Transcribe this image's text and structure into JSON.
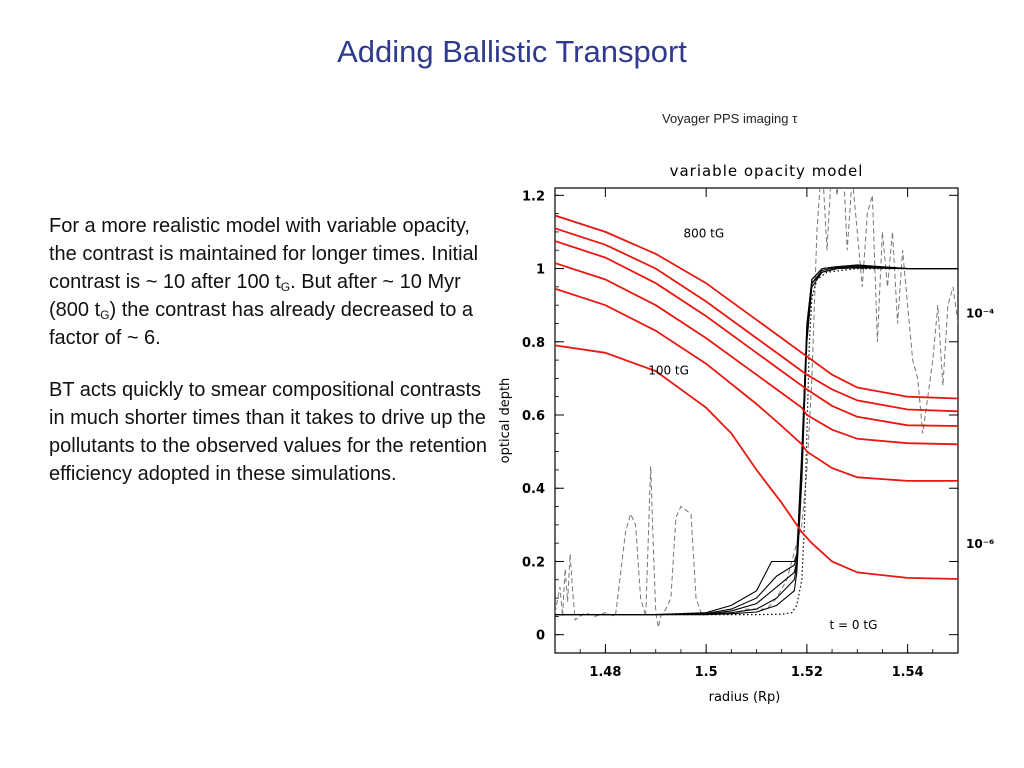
{
  "slide": {
    "title": "Adding Ballistic Transport",
    "caption": "Voyager PPS imaging τ",
    "paragraph1": {
      "p1": "For a more realistic model with variable opacity, the contrast is maintained for longer times. Initial contrast is ~ 10 after 100 t",
      "p1_sub": "G",
      "p2": ". But after ~ 10 Myr (800 t",
      "p2_sub": "G",
      "p3": ") the contrast has already decreased to  a factor of ~ 6."
    },
    "paragraph2": "BT acts quickly to smear compositional contrasts in much shorter times than it takes to drive up the pollutants to the observed values for the retention efficiency adopted in these simulations."
  },
  "chart_data": {
    "type": "line",
    "title": "variable opacity model",
    "xlabel": "radius (Rp)",
    "ylabel": "optical depth",
    "xlim": [
      1.47,
      1.55
    ],
    "ylim": [
      -0.05,
      1.22
    ],
    "x_ticks": [
      1.48,
      1.5,
      1.52,
      1.54
    ],
    "x_tick_labels": [
      "1.48",
      "1.5",
      "1.52",
      "1.54"
    ],
    "y_ticks": [
      0,
      0.2,
      0.4,
      0.6,
      0.8,
      1,
      1.2
    ],
    "y_tick_labels": [
      "0",
      "0.2",
      "0.4",
      "0.6",
      "0.8",
      "1",
      "1.2"
    ],
    "right_tick_labels": [
      {
        "label": "10⁻⁴",
        "y": 0.88
      },
      {
        "label": "10⁻⁶",
        "y": 0.25
      }
    ],
    "annotations": [
      {
        "text": "800 tG",
        "x": 1.4955,
        "y": 1.085
      },
      {
        "text": "100 tG",
        "x": 1.4885,
        "y": 0.71
      },
      {
        "text": "t = 0 tG",
        "x": 1.5245,
        "y": 0.015
      }
    ],
    "red_series": [
      {
        "x": [
          1.47,
          1.48,
          1.49,
          1.5,
          1.51,
          1.515,
          1.519,
          1.52,
          1.525,
          1.53,
          1.54,
          1.55
        ],
        "y": [
          1.145,
          1.1,
          1.04,
          0.96,
          0.86,
          0.81,
          0.77,
          0.76,
          0.71,
          0.675,
          0.65,
          0.645
        ]
      },
      {
        "x": [
          1.47,
          1.48,
          1.49,
          1.5,
          1.51,
          1.515,
          1.519,
          1.52,
          1.525,
          1.53,
          1.54,
          1.55
        ],
        "y": [
          1.11,
          1.065,
          1.0,
          0.91,
          0.81,
          0.76,
          0.72,
          0.71,
          0.67,
          0.64,
          0.615,
          0.61
        ]
      },
      {
        "x": [
          1.47,
          1.48,
          1.49,
          1.5,
          1.51,
          1.515,
          1.519,
          1.52,
          1.525,
          1.53,
          1.54,
          1.55
        ],
        "y": [
          1.075,
          1.03,
          0.96,
          0.87,
          0.77,
          0.72,
          0.68,
          0.67,
          0.625,
          0.595,
          0.572,
          0.57
        ]
      },
      {
        "x": [
          1.47,
          1.48,
          1.49,
          1.5,
          1.51,
          1.515,
          1.519,
          1.52,
          1.525,
          1.53,
          1.54,
          1.55
        ],
        "y": [
          1.015,
          0.97,
          0.9,
          0.81,
          0.71,
          0.66,
          0.62,
          0.6,
          0.56,
          0.535,
          0.523,
          0.52
        ]
      },
      {
        "x": [
          1.47,
          1.48,
          1.49,
          1.5,
          1.51,
          1.515,
          1.519,
          1.52,
          1.525,
          1.53,
          1.54,
          1.55
        ],
        "y": [
          0.945,
          0.9,
          0.83,
          0.74,
          0.63,
          0.57,
          0.52,
          0.5,
          0.455,
          0.43,
          0.42,
          0.42
        ]
      },
      {
        "x": [
          1.47,
          1.48,
          1.49,
          1.5,
          1.505,
          1.51,
          1.515,
          1.519,
          1.521,
          1.525,
          1.53,
          1.54,
          1.55
        ],
        "y": [
          0.79,
          0.77,
          0.72,
          0.62,
          0.55,
          0.45,
          0.36,
          0.28,
          0.25,
          0.2,
          0.17,
          0.155,
          0.152
        ]
      }
    ],
    "black_series": [
      {
        "x": [
          1.47,
          1.48,
          1.49,
          1.5,
          1.505,
          1.51,
          1.513,
          1.516,
          1.5175,
          1.518,
          1.519,
          1.52,
          1.521,
          1.523,
          1.526,
          1.53,
          1.54,
          1.55
        ],
        "y": [
          0.055,
          0.055,
          0.055,
          0.06,
          0.08,
          0.12,
          0.2,
          0.2,
          0.2,
          0.22,
          0.5,
          0.85,
          0.97,
          1.0,
          1.005,
          1.01,
          1.0,
          1.0
        ]
      },
      {
        "x": [
          1.47,
          1.48,
          1.49,
          1.5,
          1.505,
          1.51,
          1.514,
          1.5175,
          1.518,
          1.519,
          1.52,
          1.521,
          1.523,
          1.526,
          1.53,
          1.54,
          1.55
        ],
        "y": [
          0.055,
          0.055,
          0.055,
          0.058,
          0.07,
          0.1,
          0.16,
          0.19,
          0.21,
          0.48,
          0.84,
          0.97,
          1.0,
          1.005,
          1.008,
          1.0,
          1.0
        ]
      },
      {
        "x": [
          1.47,
          1.48,
          1.49,
          1.5,
          1.505,
          1.51,
          1.514,
          1.5175,
          1.518,
          1.519,
          1.52,
          1.521,
          1.523,
          1.526,
          1.53,
          1.54,
          1.55
        ],
        "y": [
          0.055,
          0.055,
          0.055,
          0.056,
          0.065,
          0.085,
          0.13,
          0.17,
          0.2,
          0.46,
          0.83,
          0.96,
          0.995,
          1.003,
          1.005,
          1.0,
          1.0
        ]
      },
      {
        "x": [
          1.47,
          1.48,
          1.49,
          1.5,
          1.505,
          1.51,
          1.514,
          1.5175,
          1.518,
          1.519,
          1.52,
          1.521,
          1.523,
          1.526,
          1.53,
          1.54,
          1.55
        ],
        "y": [
          0.055,
          0.055,
          0.055,
          0.055,
          0.06,
          0.07,
          0.1,
          0.15,
          0.19,
          0.44,
          0.82,
          0.96,
          0.99,
          1.0,
          1.003,
          1.0,
          1.0
        ]
      },
      {
        "x": [
          1.47,
          1.48,
          1.49,
          1.5,
          1.505,
          1.51,
          1.514,
          1.5175,
          1.518,
          1.519,
          1.52,
          1.521,
          1.523,
          1.526,
          1.53,
          1.54,
          1.55
        ],
        "y": [
          0.055,
          0.055,
          0.055,
          0.055,
          0.057,
          0.062,
          0.08,
          0.12,
          0.17,
          0.42,
          0.8,
          0.95,
          0.99,
          1.0,
          1.002,
          1.0,
          1.0
        ]
      }
    ],
    "dotted_series": {
      "x": [
        1.47,
        1.5,
        1.51,
        1.515,
        1.517,
        1.518,
        1.519,
        1.5195,
        1.52,
        1.5205,
        1.521,
        1.522,
        1.524,
        1.527,
        1.53,
        1.55
      ],
      "y": [
        0.055,
        0.055,
        0.055,
        0.056,
        0.06,
        0.08,
        0.15,
        0.3,
        0.55,
        0.8,
        0.92,
        0.97,
        0.99,
        0.995,
        1.0,
        1.0
      ]
    },
    "dashed_series": {
      "x": [
        1.47,
        1.471,
        1.4715,
        1.472,
        1.4725,
        1.473,
        1.4735,
        1.474,
        1.476,
        1.478,
        1.48,
        1.482,
        1.484,
        1.485,
        1.486,
        1.487,
        1.488,
        1.489,
        1.4895,
        1.49,
        1.4905,
        1.491,
        1.492,
        1.493,
        1.494,
        1.495,
        1.496,
        1.497,
        1.498,
        1.499,
        1.5,
        1.502,
        1.504,
        1.506,
        1.508,
        1.51,
        1.512,
        1.514,
        1.516,
        1.517,
        1.518,
        1.519,
        1.52,
        1.521,
        1.522,
        1.523,
        1.524,
        1.525,
        1.526,
        1.527,
        1.528,
        1.529,
        1.53,
        1.531,
        1.532,
        1.533,
        1.534,
        1.535,
        1.536,
        1.537,
        1.538,
        1.539,
        1.54,
        1.541,
        1.542,
        1.543,
        1.544,
        1.545,
        1.546,
        1.547,
        1.548,
        1.549,
        1.55
      ],
      "y": [
        0.06,
        0.13,
        0.05,
        0.18,
        0.09,
        0.22,
        0.12,
        0.04,
        0.06,
        0.05,
        0.06,
        0.05,
        0.28,
        0.33,
        0.3,
        0.1,
        0.05,
        0.46,
        0.25,
        0.06,
        0.02,
        0.05,
        0.07,
        0.1,
        0.32,
        0.35,
        0.34,
        0.33,
        0.1,
        0.06,
        0.06,
        0.06,
        0.06,
        0.06,
        0.07,
        0.07,
        0.07,
        0.1,
        0.15,
        0.2,
        0.25,
        0.3,
        0.45,
        0.7,
        1.1,
        1.3,
        1.05,
        1.3,
        1.2,
        1.35,
        1.05,
        1.25,
        1.1,
        0.95,
        1.15,
        1.2,
        0.8,
        1.1,
        0.95,
        1.1,
        0.85,
        1.05,
        0.9,
        0.75,
        0.7,
        0.55,
        0.65,
        0.75,
        0.9,
        0.68,
        0.9,
        0.95,
        0.85
      ]
    }
  }
}
